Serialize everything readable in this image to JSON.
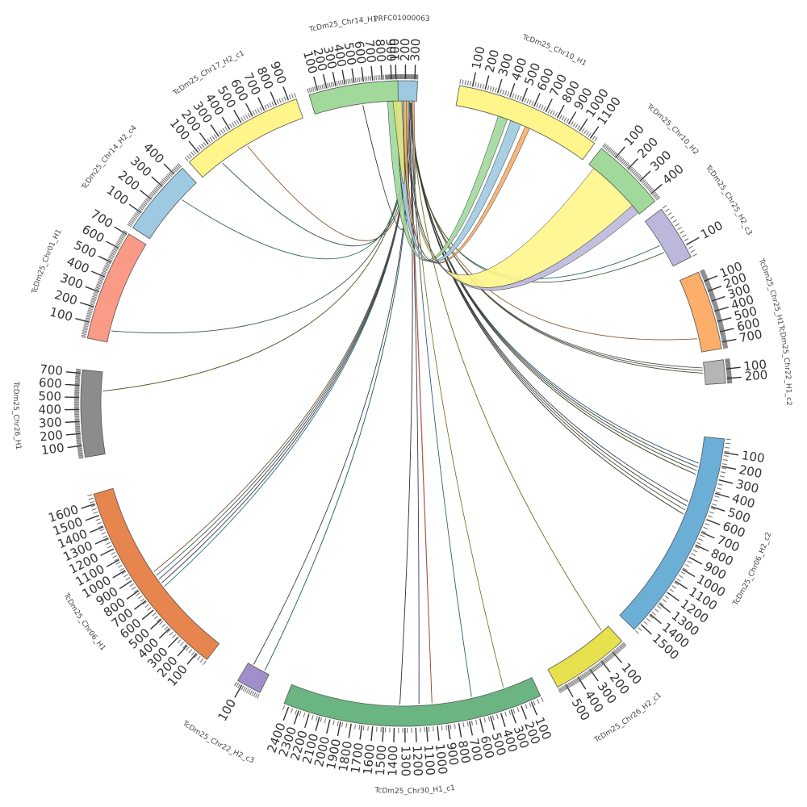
{
  "diagram": {
    "type": "circos",
    "focal_segment": "PRFC01000063",
    "segments": [
      {
        "name": "PRFC01000063",
        "length": 330,
        "color": "#9ecae1",
        "ticks": [
          100,
          200,
          300
        ]
      },
      {
        "name": "TcDm25_Chr10_H1",
        "length": 1150,
        "color": "#fff58a",
        "ticks": [
          100,
          200,
          300,
          400,
          500,
          600,
          700,
          800,
          900,
          1000,
          1100
        ]
      },
      {
        "name": "TcDm25_Chr10_H2",
        "length": 450,
        "color": "#a1d99b",
        "ticks": [
          100,
          200,
          300,
          400
        ]
      },
      {
        "name": "TcDm25_Chr25_H2_c3",
        "length": 130,
        "color": "#bcb8dc",
        "ticks": [
          100
        ]
      },
      {
        "name": "TcDm25_Chr25_H1",
        "length": 760,
        "color": "#fdae6b",
        "ticks": [
          100,
          200,
          300,
          400,
          500,
          600,
          700
        ]
      },
      {
        "name": "TcDm25_Chr22_H1_c2",
        "length": 250,
        "color": "#b5b5b5",
        "ticks": [
          100,
          200
        ]
      },
      {
        "name": "TcDm25_Chr06_H2_c2",
        "length": 1560,
        "color": "#6baed6",
        "ticks": [
          100,
          200,
          300,
          400,
          500,
          600,
          700,
          800,
          900,
          1000,
          1100,
          1200,
          1300,
          1400,
          1500
        ]
      },
      {
        "name": "TcDm25_Chr26_H2_c1",
        "length": 560,
        "color": "#e7e14d",
        "ticks": [
          100,
          200,
          300,
          400,
          500
        ]
      },
      {
        "name": "TcDm25_Chr30_H1_c1",
        "length": 2450,
        "color": "#6ab582",
        "ticks": [
          100,
          200,
          300,
          400,
          500,
          600,
          700,
          800,
          900,
          1000,
          1100,
          1200,
          1300,
          1400,
          1500,
          1600,
          1700,
          1800,
          1900,
          2000,
          2100,
          2200,
          2300,
          2400
        ]
      },
      {
        "name": "TcDm25_Chr22_H2_c3",
        "length": 130,
        "color": "#a08fcb",
        "ticks": [
          100
        ]
      },
      {
        "name": "TcDm25_Chr06_H1",
        "length": 1680,
        "color": "#e6854e",
        "ticks": [
          100,
          200,
          300,
          400,
          500,
          600,
          700,
          800,
          900,
          1000,
          1100,
          1200,
          1300,
          1400,
          1500,
          1600
        ]
      },
      {
        "name": "TcDm25_Chr26_H1",
        "length": 730,
        "color": "#8c8c8c",
        "ticks": [
          100,
          200,
          300,
          400,
          500,
          600,
          700
        ]
      },
      {
        "name": "TcDm25_Chr01_H1",
        "length": 710,
        "color": "#fb9a86",
        "ticks": [
          100,
          200,
          300,
          400,
          500,
          600,
          700
        ]
      },
      {
        "name": "TcDm25_Chr14_H2_c4",
        "length": 460,
        "color": "#9ecae1",
        "ticks": [
          100,
          200,
          300,
          400
        ]
      },
      {
        "name": "TcDm25_Chr17_H2_c1",
        "length": 960,
        "color": "#fff58a",
        "ticks": [
          100,
          200,
          300,
          400,
          500,
          600,
          700,
          800,
          900
        ]
      },
      {
        "name": "TcDm25_Chr14_H1",
        "length": 970,
        "color": "#a1d99b",
        "ticks": [
          100,
          200,
          300,
          400,
          500,
          600,
          700,
          800,
          900
        ]
      }
    ],
    "ribbons": [
      {
        "source": [
          0,
          100
        ],
        "target": "TcDm25_Chr10_H1",
        "tpos": [
          360,
          440
        ],
        "color": "#a1d99b"
      },
      {
        "source": [
          100,
          180
        ],
        "target": "TcDm25_Chr10_H1",
        "tpos": [
          470,
          560
        ],
        "color": "#9ecae1"
      },
      {
        "source": [
          180,
          215
        ],
        "target": "TcDm25_Chr10_H1",
        "tpos": [
          600,
          640
        ],
        "color": "#fdae6b"
      },
      {
        "source": [
          215,
          235
        ],
        "target": "TcDm25_Chr10_H2",
        "tpos": [
          40,
          380
        ],
        "color": "#fff58a"
      },
      {
        "source": [
          235,
          248
        ],
        "target": "TcDm25_Chr10_H2",
        "tpos": [
          380,
          440
        ],
        "color": "#bcb8dc"
      },
      {
        "source": [
          60,
          160
        ],
        "target": "PRFC01000063",
        "tpos": [
          60,
          160
        ],
        "color": "#dce47a"
      },
      {
        "source": [
          275,
          300
        ],
        "target": "PRFC01000063",
        "tpos": [
          275,
          300
        ],
        "color": "#f4a582"
      }
    ],
    "links": [
      {
        "source": 250,
        "target": "TcDm25_Chr25_H2_c3",
        "tpos": 70,
        "color": "#3d8c8c"
      },
      {
        "source": 255,
        "target": "TcDm25_Chr25_H2_c3",
        "tpos": 90,
        "color": "#4a7a4a"
      },
      {
        "source": 258,
        "target": "TcDm25_Chr25_H1",
        "tpos": 620,
        "color": "#b07040"
      },
      {
        "source": 260,
        "target": "TcDm25_Chr22_H1_c2",
        "tpos": 60,
        "color": "#777777"
      },
      {
        "source": 262,
        "target": "TcDm25_Chr22_H1_c2",
        "tpos": 90,
        "color": "#5a5a5a"
      },
      {
        "source": 263,
        "target": "TcDm25_Chr22_H1_c2",
        "tpos": 120,
        "color": "#6a6a4a"
      },
      {
        "source": 264,
        "target": "TcDm25_Chr06_H2_c2",
        "tpos": 210,
        "color": "#2f5f8f"
      },
      {
        "source": 265,
        "target": "TcDm25_Chr06_H2_c2",
        "tpos": 240,
        "color": "#444444"
      },
      {
        "source": 266,
        "target": "TcDm25_Chr06_H2_c2",
        "tpos": 270,
        "color": "#3a6a3a"
      },
      {
        "source": 267,
        "target": "TcDm25_Chr06_H2_c2",
        "tpos": 300,
        "color": "#5a3a2a"
      },
      {
        "source": 268,
        "target": "TcDm25_Chr06_H2_c2",
        "tpos": 520,
        "color": "#2a4a6a"
      },
      {
        "source": 269,
        "target": "TcDm25_Chr06_H2_c2",
        "tpos": 555,
        "color": "#444444"
      },
      {
        "source": 270,
        "target": "TcDm25_Chr06_H2_c2",
        "tpos": 590,
        "color": "#6a5a2a"
      },
      {
        "source": 271,
        "target": "TcDm25_Chr06_H2_c2",
        "tpos": 625,
        "color": "#3a3a3a"
      },
      {
        "source": 272,
        "target": "TcDm25_Chr26_H2_c1",
        "tpos": 60,
        "color": "#8a8a2a"
      },
      {
        "source": 252,
        "target": "TcDm25_Chr30_H1_c1",
        "tpos": 300,
        "color": "#9a9a3a"
      },
      {
        "source": 253,
        "target": "TcDm25_Chr30_H1_c1",
        "tpos": 630,
        "color": "#3a7a9a"
      },
      {
        "source": 240,
        "target": "TcDm25_Chr30_H1_c1",
        "tpos": 1030,
        "color": "#c0502a"
      },
      {
        "source": 238,
        "target": "TcDm25_Chr30_H1_c1",
        "tpos": 1160,
        "color": "#4a4a6a"
      },
      {
        "source": 236,
        "target": "TcDm25_Chr30_H1_c1",
        "tpos": 1350,
        "color": "#3a3a3a"
      },
      {
        "source": 234,
        "target": "TcDm25_Chr22_H2_c3",
        "tpos": 30,
        "color": "#2a6a8a"
      },
      {
        "source": 232,
        "target": "TcDm25_Chr22_H2_c3",
        "tpos": 100,
        "color": "#4a4a4a"
      },
      {
        "source": 230,
        "target": "TcDm25_Chr06_H1",
        "tpos": 700,
        "color": "#2a8a9a"
      },
      {
        "source": 228,
        "target": "TcDm25_Chr06_H1",
        "tpos": 740,
        "color": "#444444"
      },
      {
        "source": 226,
        "target": "TcDm25_Chr06_H1",
        "tpos": 780,
        "color": "#5a4a7a"
      },
      {
        "source": 224,
        "target": "TcDm25_Chr06_H1",
        "tpos": 820,
        "color": "#3a7a5a"
      },
      {
        "source": 222,
        "target": "TcDm25_Chr06_H1",
        "tpos": 860,
        "color": "#9a5a3a"
      },
      {
        "source": 220,
        "target": "TcDm25_Chr26_H1",
        "tpos": 560,
        "color": "#6a6a2a"
      },
      {
        "source": 218,
        "target": "TcDm25_Chr01_H1",
        "tpos": 80,
        "color": "#4a6a6a"
      },
      {
        "source": 216,
        "target": "TcDm25_Chr14_H2_c4",
        "tpos": 320,
        "color": "#3a8a7a"
      },
      {
        "source": 214,
        "target": "TcDm25_Chr17_H2_c1",
        "tpos": 450,
        "color": "#b06a3a"
      },
      {
        "source": 212,
        "target": "TcDm25_Chr17_H2_c1",
        "tpos": 200,
        "color": "#2a5a5a"
      },
      {
        "source": 210,
        "target": "TcDm25_Chr14_H1",
        "tpos": 560,
        "color": "#3a3a3a"
      }
    ]
  }
}
